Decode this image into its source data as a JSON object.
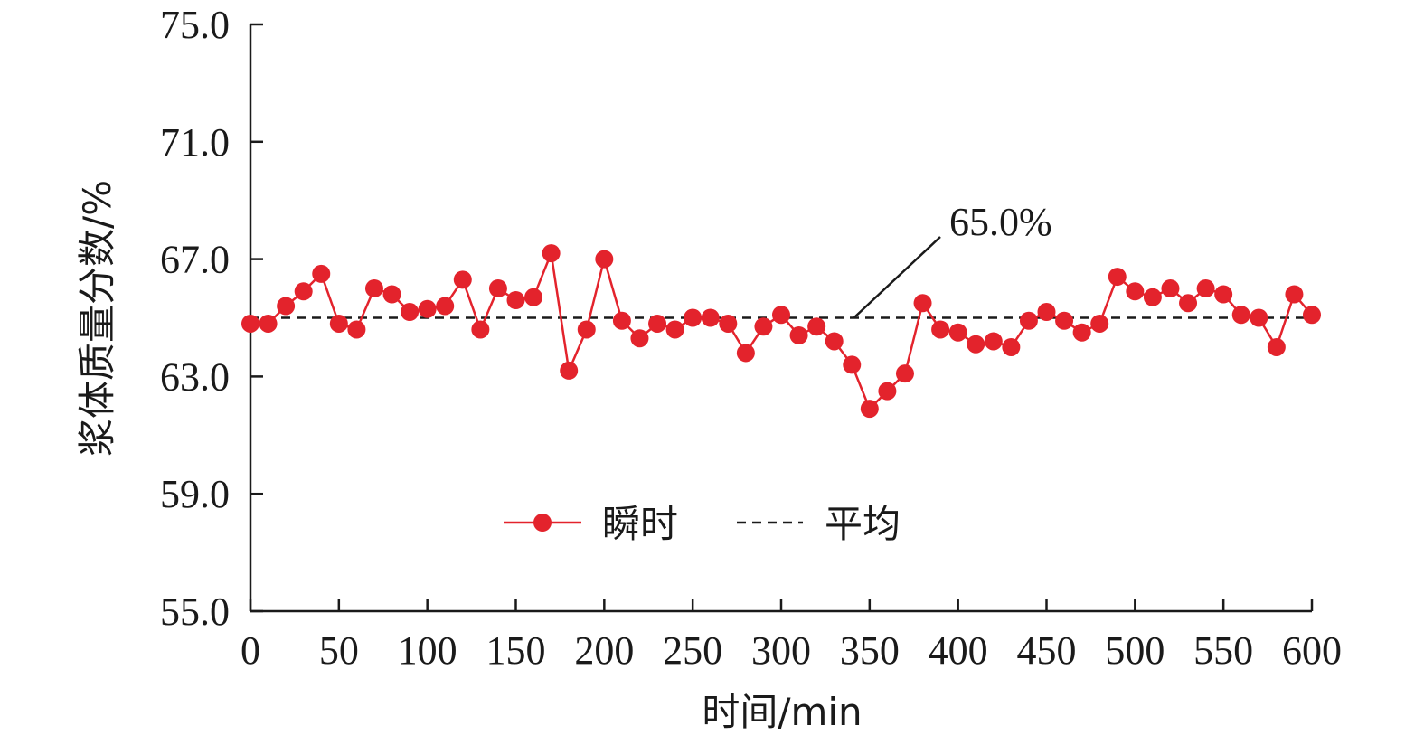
{
  "chart_data": {
    "type": "line",
    "xlabel": "时间/min",
    "ylabel": "浆体质量分数/%",
    "xlim": [
      0,
      600
    ],
    "ylim": [
      55.0,
      75.0
    ],
    "x_ticks": [
      0,
      50,
      100,
      150,
      200,
      250,
      300,
      350,
      400,
      450,
      500,
      550,
      600
    ],
    "y_ticks": [
      "55.0",
      "59.0",
      "63.0",
      "67.0",
      "71.0",
      "75.0"
    ],
    "grid": false,
    "legend_position": "bottom-center",
    "series": [
      {
        "name": "瞬时",
        "color": "#e3232c",
        "marker": "circle",
        "x": [
          0,
          10,
          20,
          30,
          40,
          50,
          60,
          70,
          80,
          90,
          100,
          110,
          120,
          130,
          140,
          150,
          160,
          170,
          180,
          190,
          200,
          210,
          220,
          230,
          240,
          250,
          260,
          270,
          280,
          290,
          300,
          310,
          320,
          330,
          340,
          350,
          360,
          370,
          380,
          390,
          400,
          410,
          420,
          430,
          440,
          450,
          460,
          470,
          480,
          490,
          500,
          510,
          520,
          530,
          540,
          550,
          560,
          570,
          580,
          590,
          600
        ],
        "y": [
          64.8,
          64.8,
          65.4,
          65.9,
          66.5,
          64.8,
          64.6,
          66.0,
          65.8,
          65.2,
          65.3,
          65.4,
          66.3,
          64.6,
          66.0,
          65.6,
          65.7,
          67.2,
          63.2,
          64.6,
          67.0,
          64.9,
          64.3,
          64.8,
          64.6,
          65.0,
          65.0,
          64.8,
          63.8,
          64.7,
          65.1,
          64.4,
          64.7,
          64.2,
          63.4,
          61.9,
          62.5,
          63.1,
          65.5,
          64.6,
          64.5,
          64.1,
          64.2,
          64.0,
          64.9,
          65.2,
          64.9,
          64.5,
          64.8,
          66.4,
          65.9,
          65.7,
          66.0,
          65.5,
          66.0,
          65.8,
          65.1,
          65.0,
          64.0,
          65.8,
          65.1
        ]
      },
      {
        "name": "平均",
        "color": "#1a1a1a",
        "style": "dashed",
        "y_constant": 65.0
      }
    ],
    "annotations": [
      {
        "text": "65.0%",
        "target_x": 340,
        "target_y": 65.0
      }
    ]
  }
}
